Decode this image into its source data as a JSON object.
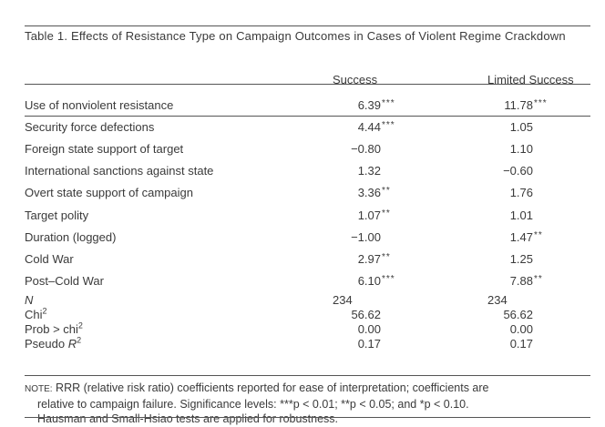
{
  "title": "Table 1. Effects of Resistance Type on Campaign Outcomes in Cases of Violent Regime Crackdown",
  "columns": [
    "Success",
    "Limited Success"
  ],
  "rows": [
    {
      "label": "Use of nonviolent resistance",
      "success": "6.39",
      "success_sig": "***",
      "limited": "11.78",
      "limited_sig": "***"
    },
    {
      "label": "Security force defections",
      "success": "4.44",
      "success_sig": "***",
      "limited": "1.05",
      "limited_sig": ""
    },
    {
      "label": "Foreign state support of target",
      "success": "−0.80",
      "success_sig": "",
      "limited": "1.10",
      "limited_sig": ""
    },
    {
      "label": "International sanctions against state",
      "success": "1.32",
      "success_sig": "",
      "limited": "−0.60",
      "limited_sig": ""
    },
    {
      "label": "Overt state support of campaign",
      "success": "3.36",
      "success_sig": "**",
      "limited": "1.76",
      "limited_sig": ""
    },
    {
      "label": "Target polity",
      "success": "1.07",
      "success_sig": "**",
      "limited": "1.01",
      "limited_sig": ""
    },
    {
      "label": "Duration (logged)",
      "success": "−1.00",
      "success_sig": "",
      "limited": "1.47",
      "limited_sig": "**"
    },
    {
      "label": "Cold War",
      "success": "2.97",
      "success_sig": "**",
      "limited": "1.25",
      "limited_sig": ""
    },
    {
      "label": "Post–Cold War",
      "success": "6.10",
      "success_sig": "***",
      "limited": "7.88",
      "limited_sig": "**"
    }
  ],
  "stats": [
    {
      "label": "N",
      "sup": "",
      "success": "234",
      "limited": "234"
    },
    {
      "label": "Chi",
      "sup": "2",
      "success": "56.62",
      "limited": "56.62"
    },
    {
      "label": "Prob > chi",
      "sup": "2",
      "success": "0.00",
      "limited": "0.00"
    },
    {
      "label": "Pseudo R",
      "sup": "2",
      "success": "0.17",
      "limited": "0.17"
    }
  ],
  "note": {
    "prefix": "NOTE:",
    "line1": " RRR (relative risk ratio) coefficients reported for ease of interpretation; coefficients are",
    "line2": "relative to campaign failure. Significance levels: ***p < 0.01; **p < 0.05; and *p < 0.10.",
    "line3": "Hausman and Small-Hsiao tests are applied for robustness."
  }
}
